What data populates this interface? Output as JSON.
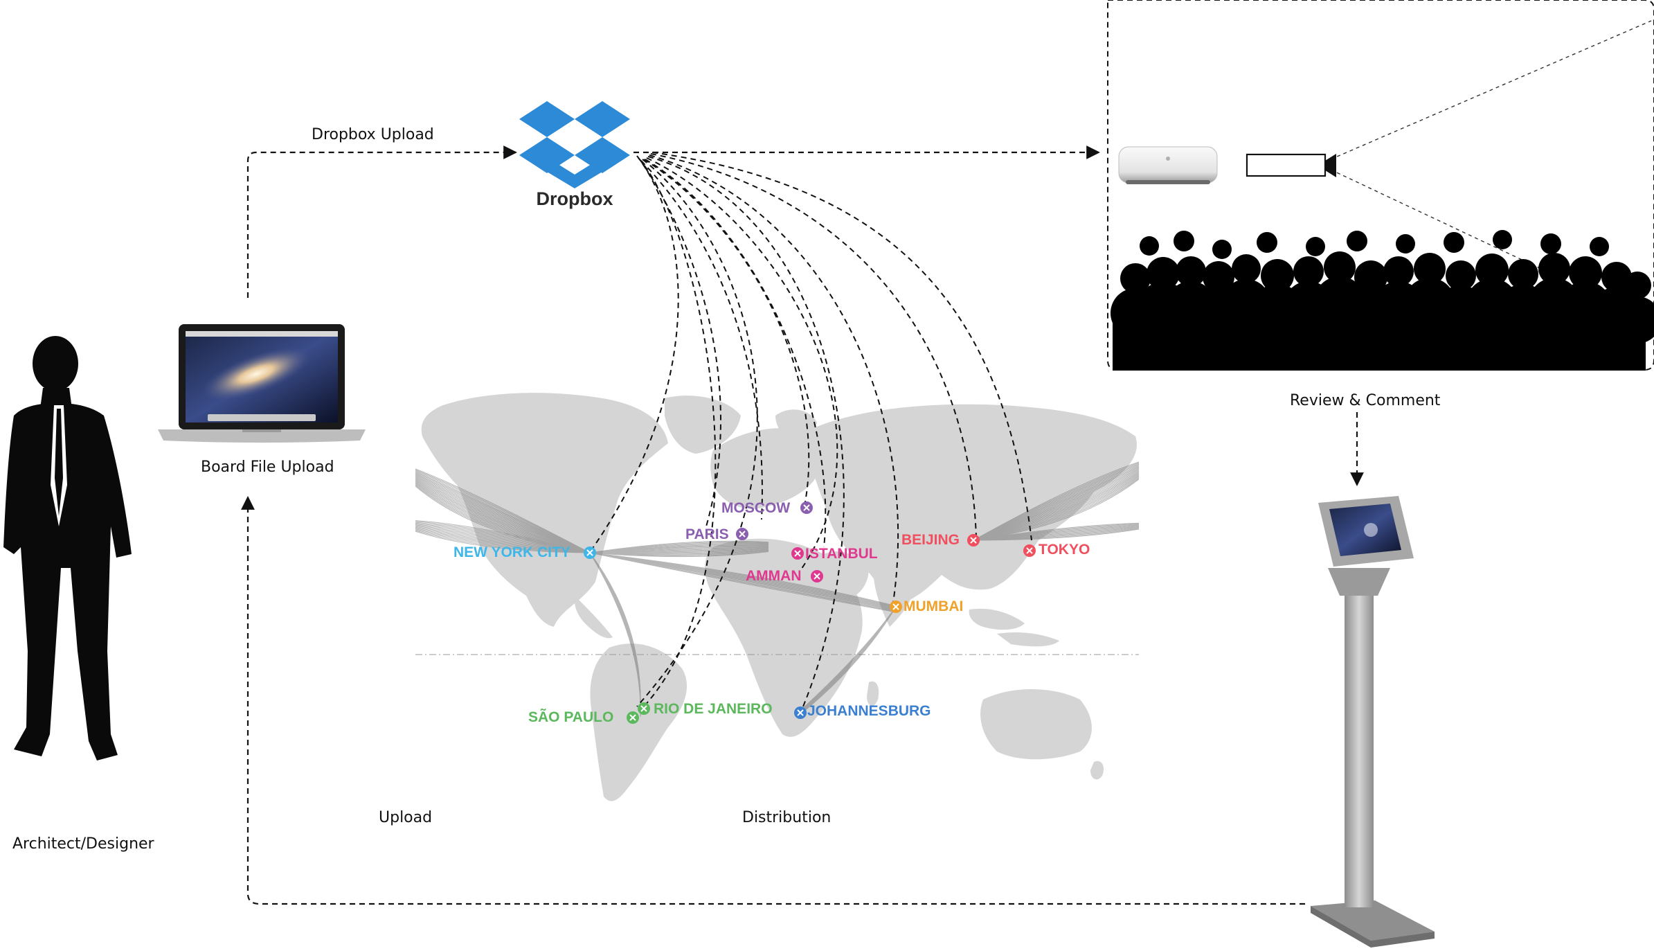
{
  "labels": {
    "dropbox_upload": "Dropbox Upload",
    "dropbox_brand": "Dropbox",
    "board_file_upload": "Board File Upload",
    "architect": "Architect/Designer",
    "upload": "Upload",
    "distribution": "Distribution",
    "review": "Review & Comment"
  },
  "cities": [
    {
      "key": "new_york",
      "name": "NEW YORK CITY",
      "color": "#3fb6e8"
    },
    {
      "key": "moscow",
      "name": "MOSCOW",
      "color": "#8b5fb0"
    },
    {
      "key": "paris",
      "name": "PARIS",
      "color": "#8b5fb0"
    },
    {
      "key": "istanbul",
      "name": "ISTANBUL",
      "color": "#e0388f"
    },
    {
      "key": "amman",
      "name": "AMMAN",
      "color": "#e0388f"
    },
    {
      "key": "beijing",
      "name": "BEIJING",
      "color": "#ef4f5e"
    },
    {
      "key": "tokyo",
      "name": "TOKYO",
      "color": "#ef4f5e"
    },
    {
      "key": "mumbai",
      "name": "MUMBAI",
      "color": "#f0a12a"
    },
    {
      "key": "rio",
      "name": "RIO DE JANEIRO",
      "color": "#5cb85c"
    },
    {
      "key": "sao_paulo",
      "name": "SÃO PAULO",
      "color": "#5cb85c"
    },
    {
      "key": "johannesburg",
      "name": "JOHANNESBURG",
      "color": "#3b7fd0"
    }
  ],
  "colors": {
    "map_land": "#d5d5d5",
    "dashed_line": "#111111",
    "dropbox_blue": "#2d8ad6",
    "silhouette": "#0a0a0a",
    "kiosk": "#a7a7a7"
  },
  "icons": [
    "person-silhouette",
    "laptop-icon",
    "dropbox-logo",
    "mac-mini-icon",
    "projector-icon",
    "audience-silhouette",
    "ipad-kiosk-icon",
    "world-map"
  ]
}
